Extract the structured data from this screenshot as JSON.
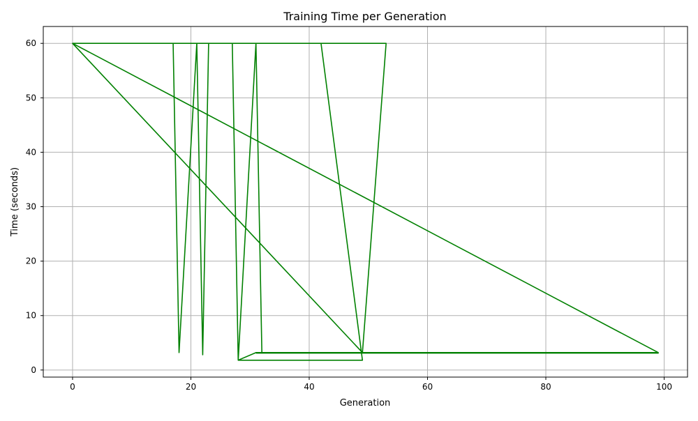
{
  "chart_data": {
    "type": "line",
    "title": "Training Time per Generation",
    "xlabel": "Generation",
    "ylabel": "Time (seconds)",
    "xlim": [
      -4.95,
      103.95
    ],
    "ylim": [
      -1.3,
      63.1
    ],
    "xticks": [
      0,
      20,
      40,
      60,
      80,
      100
    ],
    "yticks": [
      0,
      10,
      20,
      30,
      40,
      50,
      60
    ],
    "grid": true,
    "line_color": "#008000",
    "series": [
      {
        "x": [
          0,
          17,
          18,
          21,
          22,
          23,
          27,
          28,
          31,
          32,
          99,
          0,
          0,
          20,
          33,
          53,
          49,
          0,
          0,
          42,
          49,
          28,
          31,
          32,
          99,
          31
        ],
        "values": [
          60,
          60,
          3.2,
          60,
          2.8,
          60,
          60,
          1.8,
          60,
          3.2,
          3.2,
          60,
          60,
          60,
          60,
          60,
          3.2,
          60,
          60,
          60,
          1.8,
          1.8,
          3.2,
          3.2,
          3.1,
          3.1
        ]
      }
    ]
  }
}
